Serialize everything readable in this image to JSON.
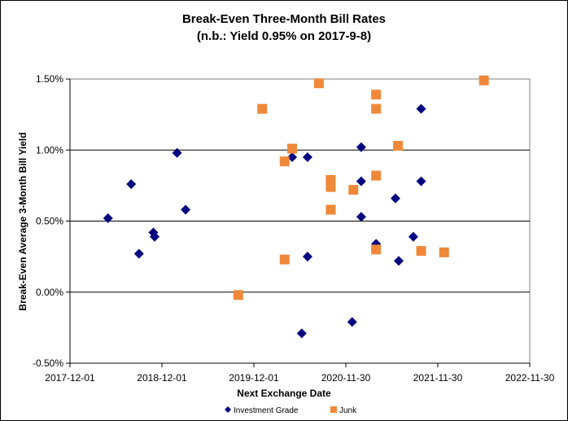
{
  "chart_data": {
    "type": "scatter",
    "title": "Break-Even Three-Month Bill Rates",
    "subtitle": "(n.b.: Yield 0.95% on 2017-9-8)",
    "xlabel": "Next Exchange Date",
    "ylabel": "Break-Even Average 3-Month Bill Yield",
    "xlim": [
      "2017-12-01",
      "2022-11-30"
    ],
    "ylim": [
      -0.5,
      1.5
    ],
    "x_ticks": [
      "2017-12-01",
      "2018-12-01",
      "2019-12-01",
      "2020-11-30",
      "2021-11-30",
      "2022-11-30"
    ],
    "y_ticks": [
      -0.5,
      0.0,
      0.5,
      1.0,
      1.5
    ],
    "y_tick_labels": [
      "-0.50%",
      "0.00%",
      "0.50%",
      "1.00%",
      "1.50%"
    ],
    "grid": "horizontal major",
    "legend_position": "bottom",
    "series": [
      {
        "name": "Investment Grade",
        "marker": "diamond",
        "color": "#000080",
        "points": [
          [
            "2018-05-01",
            0.52
          ],
          [
            "2018-08-01",
            0.76
          ],
          [
            "2018-09-01",
            0.27
          ],
          [
            "2018-10-28",
            0.42
          ],
          [
            "2018-11-02",
            0.39
          ],
          [
            "2019-01-30",
            0.98
          ],
          [
            "2019-03-05",
            0.58
          ],
          [
            "2020-05-01",
            0.95
          ],
          [
            "2020-06-08",
            -0.29
          ],
          [
            "2020-07-01",
            0.95
          ],
          [
            "2020-07-01",
            0.25
          ],
          [
            "2020-12-25",
            -0.21
          ],
          [
            "2021-01-30",
            1.02
          ],
          [
            "2021-01-30",
            0.78
          ],
          [
            "2021-01-30",
            0.53
          ],
          [
            "2021-03-30",
            0.34
          ],
          [
            "2021-06-15",
            0.66
          ],
          [
            "2021-06-28",
            0.22
          ],
          [
            "2021-08-25",
            0.39
          ],
          [
            "2021-09-25",
            1.29
          ],
          [
            "2021-09-25",
            0.78
          ]
        ]
      },
      {
        "name": "Junk",
        "marker": "square",
        "color": "#F0883A",
        "points": [
          [
            "2019-09-30",
            -0.02
          ],
          [
            "2020-01-03",
            1.29
          ],
          [
            "2020-04-01",
            0.92
          ],
          [
            "2020-04-01",
            0.23
          ],
          [
            "2020-05-01",
            1.01
          ],
          [
            "2020-08-15",
            1.47
          ],
          [
            "2020-10-01",
            0.79
          ],
          [
            "2020-10-01",
            0.74
          ],
          [
            "2020-10-01",
            0.58
          ],
          [
            "2020-12-30",
            0.72
          ],
          [
            "2021-03-30",
            1.39
          ],
          [
            "2021-03-30",
            1.29
          ],
          [
            "2021-03-30",
            0.82
          ],
          [
            "2021-03-30",
            0.3
          ],
          [
            "2021-06-25",
            1.03
          ],
          [
            "2021-09-25",
            0.29
          ],
          [
            "2021-12-25",
            0.28
          ],
          [
            "2022-06-01",
            1.49
          ]
        ]
      }
    ]
  }
}
